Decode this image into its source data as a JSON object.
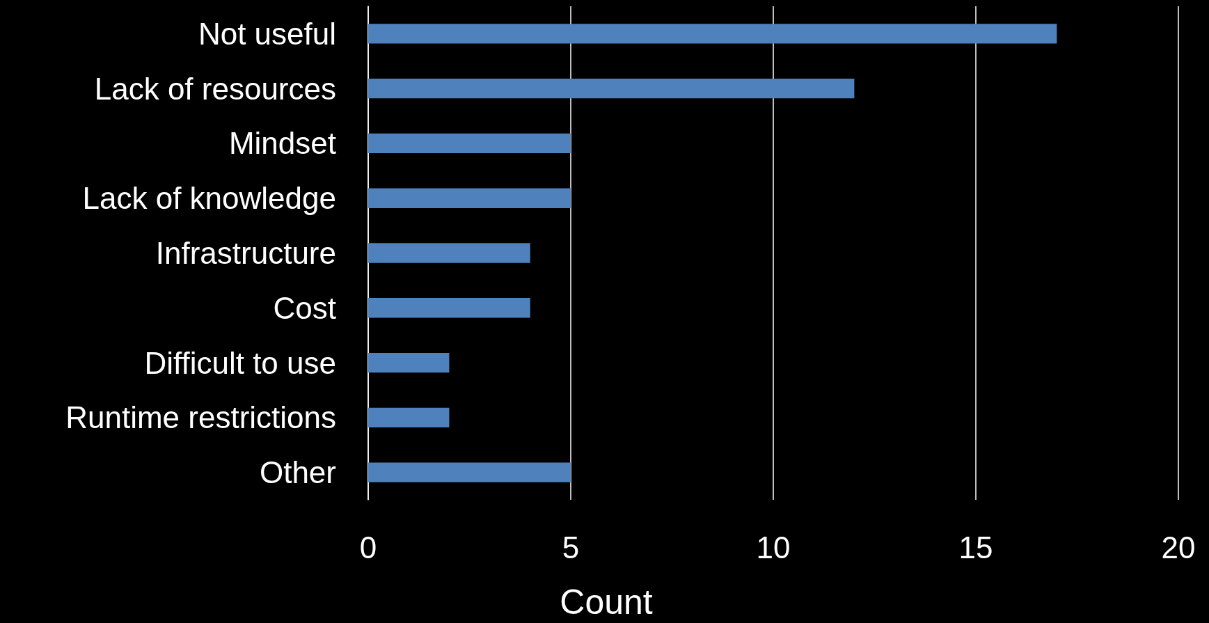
{
  "chart_data": {
    "type": "bar",
    "orientation": "horizontal",
    "xlabel": "Count",
    "categories": [
      "Not useful",
      "Lack of resources",
      "Mindset",
      "Lack of knowledge",
      "Infrastructure",
      "Cost",
      "Difficult to use",
      "Runtime restrictions",
      "Other"
    ],
    "values": [
      17,
      12,
      5,
      5,
      4,
      4,
      2,
      2,
      5
    ],
    "color": "#4f81bd",
    "xlim": [
      0,
      20
    ],
    "xticks": [
      0,
      5,
      10,
      15,
      20
    ],
    "grid": "x"
  }
}
